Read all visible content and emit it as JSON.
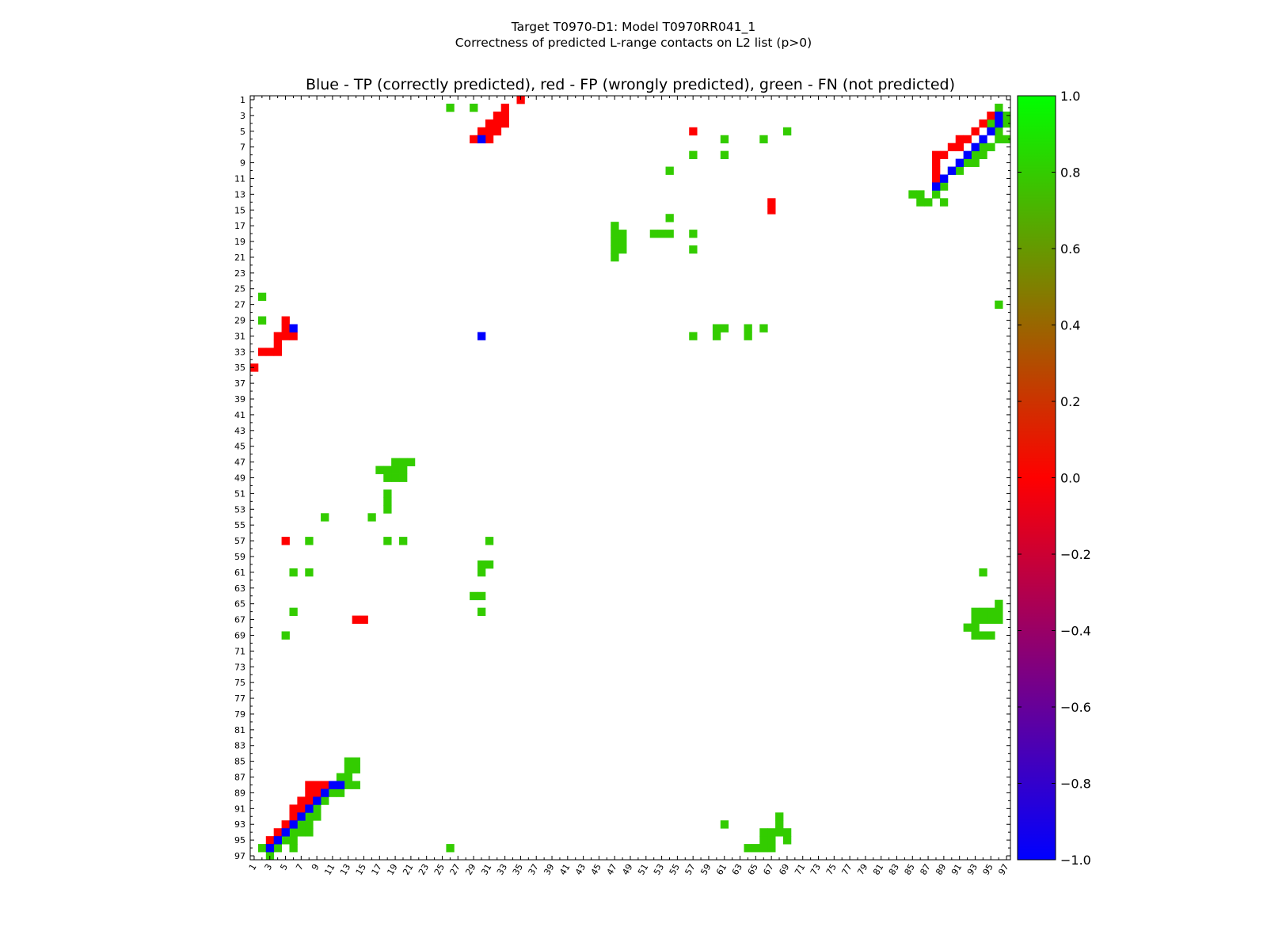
{
  "figure": {
    "suptitle_line1": "Target T0970-D1: Model T0970RR041_1",
    "suptitle_line2": "Correctness of predicted L-range contacts on L2 list (p>0)"
  },
  "chart_data": {
    "type": "heatmap",
    "title": "Blue - TP (correctly predicted), red - FP (wrongly predicted), green - FN (not predicted)",
    "xlabel": "",
    "ylabel": "",
    "xlim": [
      1,
      97
    ],
    "ylim": [
      1,
      97
    ],
    "x_ticks": [
      "1",
      "3",
      "5",
      "7",
      "9",
      "11",
      "13",
      "15",
      "17",
      "19",
      "21",
      "23",
      "25",
      "27",
      "29",
      "31",
      "33",
      "35",
      "37",
      "39",
      "41",
      "43",
      "45",
      "47",
      "49",
      "51",
      "53",
      "55",
      "57",
      "59",
      "61",
      "63",
      "65",
      "67",
      "69",
      "71",
      "73",
      "75",
      "77",
      "79",
      "81",
      "83",
      "85",
      "87",
      "89",
      "91",
      "93",
      "95",
      "97"
    ],
    "y_ticks": [
      "1",
      "3",
      "5",
      "7",
      "9",
      "11",
      "13",
      "15",
      "17",
      "19",
      "21",
      "23",
      "25",
      "27",
      "29",
      "31",
      "33",
      "35",
      "37",
      "39",
      "41",
      "43",
      "45",
      "47",
      "49",
      "51",
      "53",
      "55",
      "57",
      "59",
      "61",
      "63",
      "65",
      "67",
      "69",
      "71",
      "73",
      "75",
      "77",
      "79",
      "81",
      "83",
      "85",
      "87",
      "89",
      "91",
      "93",
      "95",
      "97"
    ],
    "value_legend": {
      "TP": -1.0,
      "FP": 0.0,
      "FN": 1.0
    },
    "colors": {
      "TP": "#0000ff",
      "FP": "#ff0000",
      "FN": "#33cc00"
    },
    "colorbar": {
      "vmin": -1.0,
      "vmax": 1.0,
      "stops": [
        "#0000ff",
        "#ff0000",
        "#00ff00"
      ],
      "ticks": [
        "1.0",
        "0.8",
        "0.6",
        "0.4",
        "0.2",
        "0.0",
        "−0.2",
        "−0.4",
        "−0.6",
        "−0.8",
        "−1.0"
      ]
    },
    "cells": {
      "TP": [
        [
          3,
          96
        ],
        [
          4,
          96
        ],
        [
          5,
          95
        ],
        [
          6,
          94
        ],
        [
          7,
          93
        ],
        [
          8,
          92
        ],
        [
          9,
          91
        ],
        [
          10,
          90
        ],
        [
          11,
          89
        ],
        [
          12,
          88
        ],
        [
          31,
          30
        ],
        [
          30,
          6
        ],
        [
          96,
          3
        ],
        [
          95,
          4
        ],
        [
          94,
          5
        ],
        [
          93,
          6
        ],
        [
          92,
          7
        ],
        [
          91,
          8
        ],
        [
          90,
          9
        ],
        [
          89,
          10
        ],
        [
          88,
          11
        ],
        [
          88,
          12
        ],
        [
          6,
          30
        ]
      ],
      "FP": [
        [
          1,
          35
        ],
        [
          2,
          33
        ],
        [
          3,
          32
        ],
        [
          3,
          33
        ],
        [
          4,
          31
        ],
        [
          4,
          32
        ],
        [
          4,
          33
        ],
        [
          5,
          30
        ],
        [
          5,
          31
        ],
        [
          5,
          32
        ],
        [
          6,
          29
        ],
        [
          6,
          31
        ],
        [
          3,
          95
        ],
        [
          4,
          94
        ],
        [
          5,
          93
        ],
        [
          6,
          92
        ],
        [
          6,
          91
        ],
        [
          7,
          91
        ],
        [
          7,
          90
        ],
        [
          8,
          89
        ],
        [
          8,
          88
        ],
        [
          9,
          88
        ],
        [
          10,
          88
        ],
        [
          11,
          88
        ],
        [
          5,
          57
        ],
        [
          14,
          67
        ],
        [
          15,
          67
        ],
        [
          29,
          5
        ],
        [
          30,
          5
        ],
        [
          31,
          4
        ],
        [
          32,
          4
        ],
        [
          33,
          3
        ],
        [
          33,
          4
        ],
        [
          33,
          2
        ],
        [
          31,
          5
        ],
        [
          31,
          6
        ],
        [
          35,
          1
        ],
        [
          57,
          5
        ],
        [
          67,
          14
        ],
        [
          67,
          15
        ],
        [
          95,
          3
        ],
        [
          94,
          4
        ],
        [
          93,
          5
        ],
        [
          92,
          6
        ],
        [
          91,
          6
        ],
        [
          91,
          7
        ],
        [
          90,
          7
        ],
        [
          89,
          8
        ],
        [
          88,
          8
        ],
        [
          88,
          9
        ],
        [
          88,
          10
        ],
        [
          88,
          11
        ],
        [
          89,
          9
        ],
        [
          90,
          8
        ]
      ],
      "FN": [
        [
          2,
          26
        ],
        [
          2,
          29
        ],
        [
          2,
          96
        ],
        [
          3,
          97
        ],
        [
          4,
          97
        ],
        [
          4,
          95
        ],
        [
          5,
          96
        ],
        [
          5,
          69
        ],
        [
          6,
          61
        ],
        [
          6,
          66
        ],
        [
          6,
          96
        ],
        [
          6,
          97
        ],
        [
          7,
          94
        ],
        [
          7,
          95
        ],
        [
          8,
          93
        ],
        [
          8,
          94
        ],
        [
          9,
          92
        ],
        [
          9,
          93
        ],
        [
          10,
          90
        ],
        [
          10,
          91
        ],
        [
          11,
          89
        ],
        [
          12,
          89
        ],
        [
          13,
          86
        ],
        [
          13,
          85
        ],
        [
          13,
          88
        ],
        [
          14,
          86
        ],
        [
          14,
          87
        ],
        [
          14,
          89
        ],
        [
          8,
          57
        ],
        [
          8,
          61
        ],
        [
          10,
          54
        ],
        [
          16,
          54
        ],
        [
          17,
          47
        ],
        [
          18,
          47
        ],
        [
          18,
          48
        ],
        [
          19,
          47
        ],
        [
          19,
          48
        ],
        [
          20,
          47
        ],
        [
          20,
          48
        ],
        [
          21,
          47
        ],
        [
          18,
          52
        ],
        [
          18,
          53
        ],
        [
          18,
          54
        ],
        [
          18,
          57
        ],
        [
          20,
          57
        ],
        [
          26,
          2
        ],
        [
          27,
          96
        ],
        [
          29,
          2
        ],
        [
          30,
          60
        ],
        [
          30,
          61
        ],
        [
          30,
          64
        ],
        [
          30,
          66
        ],
        [
          31,
          60
        ],
        [
          31,
          64
        ],
        [
          31,
          57
        ],
        [
          47,
          19
        ],
        [
          47,
          20
        ],
        [
          47,
          21
        ],
        [
          48,
          17
        ],
        [
          48,
          18
        ],
        [
          48,
          19
        ],
        [
          48,
          20
        ],
        [
          49,
          18
        ],
        [
          49,
          19
        ],
        [
          49,
          20
        ],
        [
          51,
          18
        ],
        [
          52,
          18
        ],
        [
          53,
          18
        ],
        [
          54,
          10
        ],
        [
          54,
          16
        ],
        [
          57,
          8
        ],
        [
          57,
          18
        ],
        [
          57,
          20
        ],
        [
          57,
          31
        ],
        [
          60,
          30
        ],
        [
          60,
          31
        ],
        [
          61,
          6
        ],
        [
          61,
          8
        ],
        [
          61,
          30
        ],
        [
          61,
          94
        ],
        [
          64,
          29
        ],
        [
          64,
          30
        ],
        [
          65,
          96
        ],
        [
          66,
          6
        ],
        [
          66,
          30
        ],
        [
          66,
          93
        ],
        [
          66,
          94
        ],
        [
          66,
          95
        ],
        [
          66,
          96
        ],
        [
          67,
          93
        ],
        [
          67,
          94
        ],
        [
          67,
          95
        ],
        [
          67,
          96
        ],
        [
          68,
          92
        ],
        [
          68,
          93
        ],
        [
          69,
          5
        ],
        [
          69,
          93
        ],
        [
          69,
          94
        ],
        [
          69,
          95
        ],
        [
          85,
          13
        ],
        [
          85,
          14
        ],
        [
          86,
          13
        ],
        [
          86,
          14
        ],
        [
          87,
          12
        ],
        [
          87,
          13
        ],
        [
          88,
          12
        ],
        [
          88,
          13
        ],
        [
          88,
          14
        ],
        [
          89,
          11
        ],
        [
          89,
          12
        ],
        [
          89,
          10
        ],
        [
          90,
          9
        ],
        [
          90,
          10
        ],
        [
          91,
          9
        ],
        [
          92,
          8
        ],
        [
          92,
          9
        ],
        [
          93,
          7
        ],
        [
          93,
          8
        ],
        [
          93,
          61
        ],
        [
          93,
          68
        ],
        [
          94,
          6
        ],
        [
          94,
          7
        ],
        [
          94,
          8
        ],
        [
          94,
          66
        ],
        [
          94,
          67
        ],
        [
          94,
          68
        ],
        [
          94,
          69
        ],
        [
          95,
          5
        ],
        [
          95,
          6
        ],
        [
          95,
          66
        ],
        [
          95,
          67
        ],
        [
          95,
          69
        ],
        [
          96,
          2
        ],
        [
          96,
          3
        ],
        [
          96,
          4
        ],
        [
          96,
          6
        ],
        [
          96,
          64
        ],
        [
          96,
          65
        ],
        [
          96,
          66
        ],
        [
          96,
          67
        ],
        [
          96,
          26
        ],
        [
          97,
          3
        ],
        [
          92,
          68
        ]
      ]
    }
  }
}
